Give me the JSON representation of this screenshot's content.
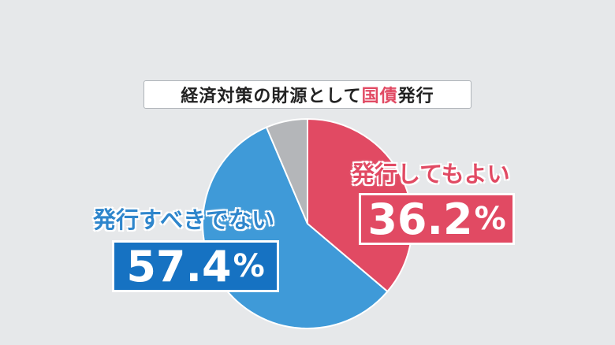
{
  "chart_data": {
    "type": "pie",
    "title_pre": "経済対策の財源として",
    "title_accent": "国債",
    "title_post": "発行",
    "slices": [
      {
        "label": "発行してもよい",
        "value": 36.2,
        "value_text": "36.2",
        "color": "#e14a63"
      },
      {
        "label": "発行すべきでない",
        "value": 57.4,
        "value_text": "57.4",
        "color": "#3f9ad8"
      },
      {
        "label": "",
        "value": 6.4,
        "color": "#b4b6b9"
      }
    ],
    "unit": "%"
  }
}
